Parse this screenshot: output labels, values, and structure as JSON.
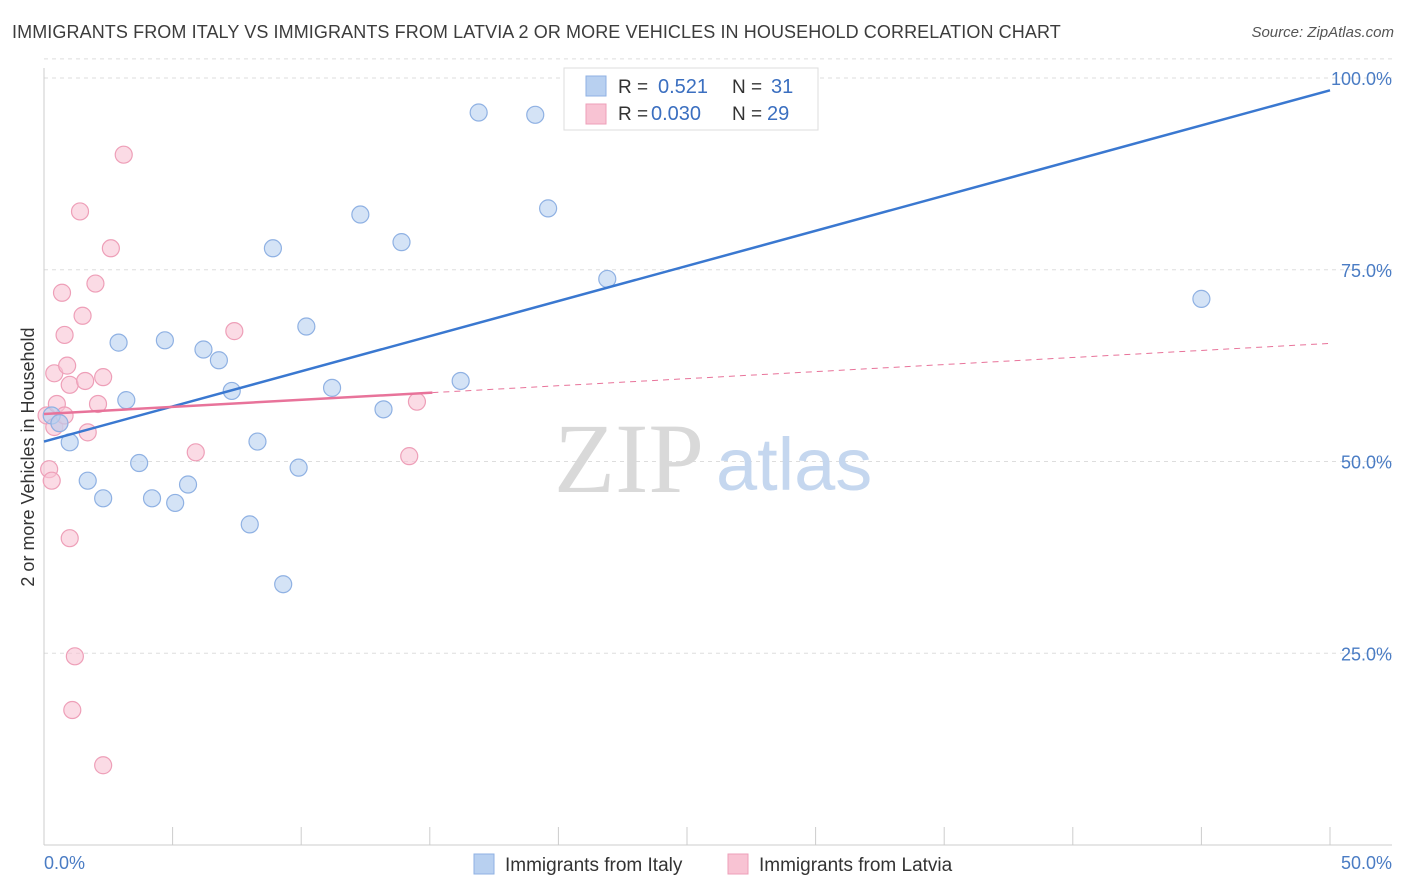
{
  "header": {
    "title": "IMMIGRANTS FROM ITALY VS IMMIGRANTS FROM LATVIA 2 OR MORE VEHICLES IN HOUSEHOLD CORRELATION CHART",
    "source": "Source: ZipAtlas.com"
  },
  "watermark": {
    "zip": "ZIP",
    "atlas": "atlas"
  },
  "legend": {
    "rows": [
      {
        "r_label": "R = ",
        "r_value": "0.521",
        "n_label": "N = ",
        "n_value": "31"
      },
      {
        "r_label": "R = ",
        "r_value": "0.030",
        "n_label": "N = ",
        "n_value": "29"
      }
    ]
  },
  "bottom_legend": {
    "items": [
      {
        "label": "Immigrants from Italy"
      },
      {
        "label": "Immigrants from Latvia"
      }
    ]
  },
  "colors": {
    "italy_fill": "#b8d0f0",
    "italy_stroke": "#8fb1e3",
    "italy_line": "#3a78d0",
    "latvia_fill": "#f8c3d3",
    "latvia_stroke": "#ee9fb8",
    "latvia_line": "#e8739a",
    "grid": "#dddddd",
    "tick_label": "#4a7cc4"
  },
  "chart_data": {
    "type": "scatter",
    "title": "IMMIGRANTS FROM ITALY VS IMMIGRANTS FROM LATVIA 2 OR MORE VEHICLES IN HOUSEHOLD CORRELATION CHART",
    "xlabel": "",
    "ylabel": "2 or more Vehicles in Household",
    "xlim": [
      0,
      50
    ],
    "ylim": [
      0,
      100
    ],
    "x_tick_labels": [
      "0.0%",
      "50.0%"
    ],
    "y_ticks": [
      {
        "value": 25,
        "label": "25.0%"
      },
      {
        "value": 50,
        "label": "50.0%"
      },
      {
        "value": 75,
        "label": "75.0%"
      },
      {
        "value": 100,
        "label": "100.0%"
      }
    ],
    "grid": true,
    "legend_position": "top-center",
    "series": [
      {
        "name": "Immigrants from Italy",
        "r": 0.521,
        "n": 31,
        "trend": {
          "x": [
            0,
            50
          ],
          "y": [
            52.6,
            98.4
          ],
          "dashed_from_x": null
        },
        "points": [
          [
            0.3,
            56.0
          ],
          [
            0.6,
            55.0
          ],
          [
            1.0,
            52.5
          ],
          [
            1.7,
            47.5
          ],
          [
            2.3,
            45.2
          ],
          [
            2.9,
            65.5
          ],
          [
            3.2,
            58.0
          ],
          [
            3.7,
            49.8
          ],
          [
            4.2,
            45.2
          ],
          [
            4.7,
            65.8
          ],
          [
            5.1,
            44.6
          ],
          [
            5.6,
            47.0
          ],
          [
            6.2,
            64.6
          ],
          [
            6.8,
            63.2
          ],
          [
            7.3,
            59.2
          ],
          [
            8.0,
            41.8
          ],
          [
            8.3,
            52.6
          ],
          [
            8.9,
            77.8
          ],
          [
            9.3,
            34.0
          ],
          [
            9.9,
            49.2
          ],
          [
            10.2,
            67.6
          ],
          [
            11.2,
            59.6
          ],
          [
            12.3,
            82.2
          ],
          [
            13.2,
            56.8
          ],
          [
            13.9,
            78.6
          ],
          [
            16.2,
            60.5
          ],
          [
            16.9,
            95.5
          ],
          [
            19.1,
            95.2
          ],
          [
            19.6,
            83.0
          ],
          [
            21.9,
            73.8
          ],
          [
            45.0,
            71.2
          ]
        ]
      },
      {
        "name": "Immigrants from Latvia",
        "r": 0.03,
        "n": 29,
        "trend": {
          "x": [
            0,
            50
          ],
          "y": [
            56.2,
            65.4
          ],
          "dashed_from_x": 15.1
        },
        "points": [
          [
            0.1,
            56.0
          ],
          [
            0.2,
            49.0
          ],
          [
            0.3,
            47.5
          ],
          [
            0.4,
            54.5
          ],
          [
            0.4,
            61.5
          ],
          [
            0.5,
            57.5
          ],
          [
            0.6,
            55.0
          ],
          [
            0.7,
            72.0
          ],
          [
            0.8,
            56.0
          ],
          [
            0.8,
            66.5
          ],
          [
            0.9,
            62.5
          ],
          [
            1.0,
            40.0
          ],
          [
            1.0,
            60.0
          ],
          [
            1.1,
            17.6
          ],
          [
            1.2,
            24.6
          ],
          [
            1.4,
            82.6
          ],
          [
            1.5,
            69.0
          ],
          [
            1.6,
            60.5
          ],
          [
            1.7,
            53.8
          ],
          [
            2.0,
            73.2
          ],
          [
            2.1,
            57.5
          ],
          [
            2.3,
            10.4
          ],
          [
            2.3,
            61.0
          ],
          [
            2.6,
            77.8
          ],
          [
            3.1,
            90.0
          ],
          [
            5.9,
            51.2
          ],
          [
            7.4,
            67.0
          ],
          [
            14.2,
            50.7
          ],
          [
            14.5,
            57.8
          ]
        ]
      }
    ]
  }
}
